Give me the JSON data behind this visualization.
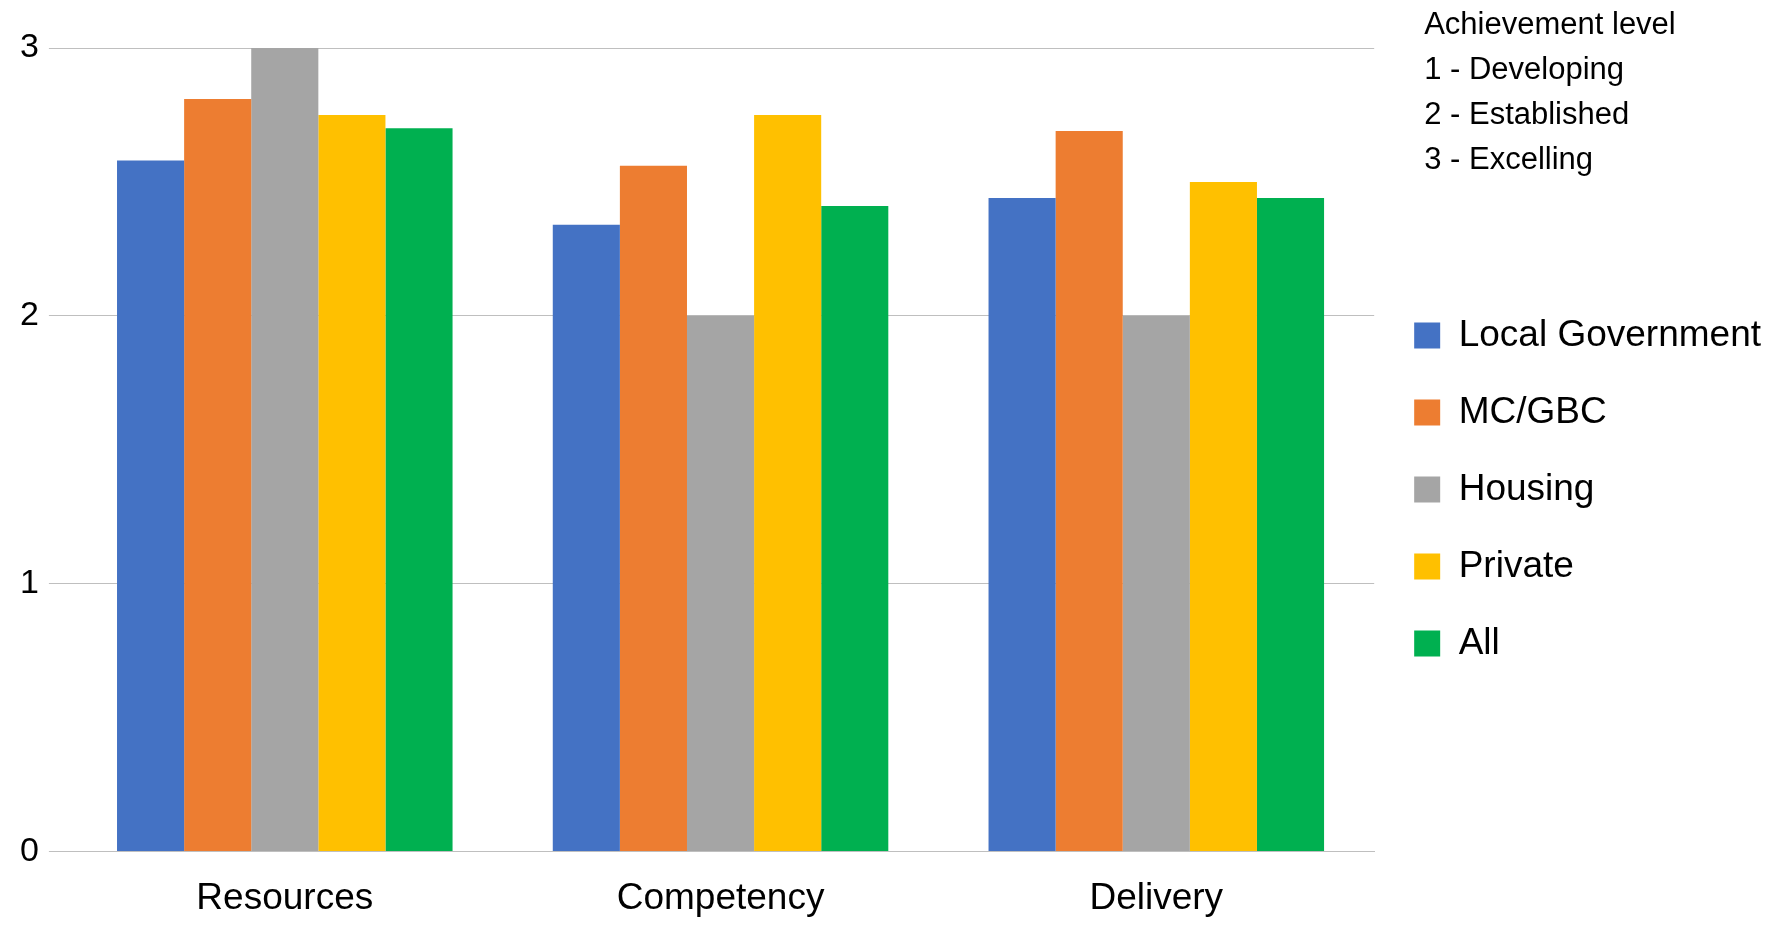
{
  "chart_data": {
    "type": "bar",
    "categories": [
      "Resources",
      "Competency",
      "Delivery"
    ],
    "series": [
      {
        "name": "Local Government",
        "color": "#4472c4",
        "values": [
          2.58,
          2.34,
          2.44
        ]
      },
      {
        "name": "MC/GBC",
        "color": "#ed7d31",
        "values": [
          2.81,
          2.56,
          2.69
        ]
      },
      {
        "name": "Housing",
        "color": "#a5a5a5",
        "values": [
          3,
          2,
          2
        ]
      },
      {
        "name": "Private",
        "color": "#ffc000",
        "values": [
          2.75,
          2.75,
          2.5
        ]
      },
      {
        "name": "All",
        "color": "#00b050",
        "values": [
          2.7,
          2.41,
          2.44
        ]
      }
    ],
    "ylim": [
      0,
      3
    ],
    "yticks": [
      0,
      1,
      2,
      3
    ],
    "grid": "y",
    "legend": "right",
    "annotations": [
      "Achievement level",
      "1 - Developing",
      "2 - Established",
      "3 - Excelling"
    ]
  }
}
